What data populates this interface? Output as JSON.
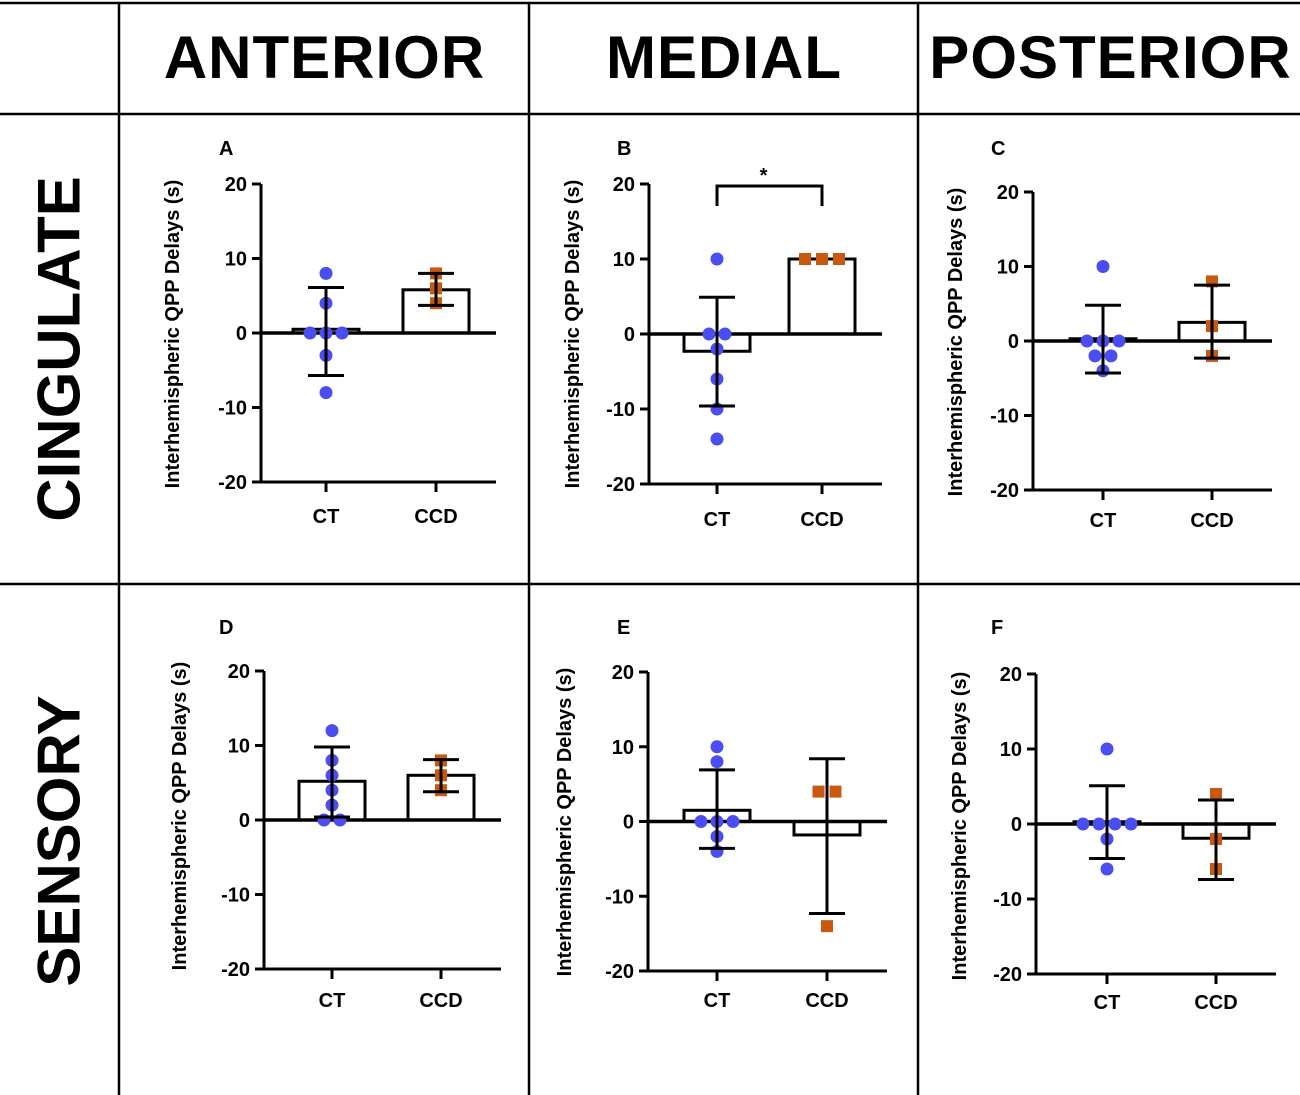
{
  "table": {
    "columns": [
      "ANTERIOR",
      "MEDIAL",
      "POSTERIOR"
    ],
    "rows": [
      "CINGULATE",
      "SENSORY"
    ]
  },
  "colors": {
    "ct": "#4a4df0",
    "ccd": "#c8590f",
    "axis": "#000000",
    "bar_fill": "#ffffff"
  },
  "chart_data": [
    {
      "type": "bar",
      "panel": "A",
      "title": "",
      "xlabel": "",
      "ylabel": "Interhemispheric QPP Delays (s)",
      "ylim": [
        -20,
        20
      ],
      "yticks": [
        20,
        10,
        0,
        -10,
        -20
      ],
      "categories": [
        "CT",
        "CCD"
      ],
      "bar_means": [
        0.5,
        5.8
      ],
      "error_bars": [
        [
          -5.7,
          6.1
        ],
        [
          3.7,
          8.0
        ]
      ],
      "points": {
        "CT": [
          8,
          4,
          0,
          0,
          0,
          -3,
          -8
        ],
        "CCD": [
          8,
          6,
          4
        ]
      },
      "annotations": []
    },
    {
      "type": "bar",
      "panel": "B",
      "title": "",
      "xlabel": "",
      "ylabel": "Interhemispheric QPP Delays (s)",
      "ylim": [
        -20,
        20
      ],
      "yticks": [
        20,
        10,
        0,
        -10,
        -20
      ],
      "categories": [
        "CT",
        "CCD"
      ],
      "bar_means": [
        -2.3,
        10.0
      ],
      "error_bars": [
        [
          -9.6,
          4.9
        ],
        [
          10.0,
          10.0
        ]
      ],
      "points": {
        "CT": [
          10,
          0,
          0,
          -2,
          -6,
          -10,
          -14
        ],
        "CCD": [
          10,
          10,
          10
        ]
      },
      "annotations": [
        "*"
      ]
    },
    {
      "type": "bar",
      "panel": "C",
      "title": "",
      "xlabel": "",
      "ylabel": "Interhemispheric QPP Delays (s)",
      "ylim": [
        -20,
        20
      ],
      "yticks": [
        20,
        10,
        0,
        -10,
        -20
      ],
      "categories": [
        "CT",
        "CCD"
      ],
      "bar_means": [
        0.3,
        2.5
      ],
      "error_bars": [
        [
          -4.3,
          4.8
        ],
        [
          -2.3,
          7.5
        ]
      ],
      "points": {
        "CT": [
          10,
          0,
          0,
          0,
          -2,
          -2,
          -4
        ],
        "CCD": [
          8,
          2,
          -2
        ]
      },
      "annotations": []
    },
    {
      "type": "bar",
      "panel": "D",
      "title": "",
      "xlabel": "",
      "ylabel": "Interhemispheric QPP Delays (s)",
      "ylim": [
        -20,
        20
      ],
      "yticks": [
        20,
        10,
        0,
        -10,
        -20
      ],
      "categories": [
        "CT",
        "CCD"
      ],
      "bar_means": [
        5.2,
        6.0
      ],
      "error_bars": [
        [
          0.4,
          9.8
        ],
        [
          3.8,
          8.1
        ]
      ],
      "points": {
        "CT": [
          12,
          8,
          6,
          4,
          2,
          0,
          0
        ],
        "CCD": [
          8,
          6,
          4
        ]
      },
      "annotations": []
    },
    {
      "type": "bar",
      "panel": "E",
      "title": "",
      "xlabel": "",
      "ylabel": "Interhemispheric QPP Delays (s)",
      "ylim": [
        -20,
        20
      ],
      "yticks": [
        20,
        10,
        0,
        -10,
        -20
      ],
      "categories": [
        "CT",
        "CCD"
      ],
      "bar_means": [
        1.5,
        -1.8
      ],
      "error_bars": [
        [
          -3.6,
          6.9
        ],
        [
          -12.3,
          8.4
        ]
      ],
      "points": {
        "CT": [
          10,
          8,
          0,
          0,
          0,
          -2,
          -4
        ],
        "CCD": [
          4,
          4,
          -14
        ]
      },
      "annotations": []
    },
    {
      "type": "bar",
      "panel": "F",
      "title": "",
      "xlabel": "",
      "ylabel": "Interhemispheric QPP Delays (s)",
      "ylim": [
        -20,
        20
      ],
      "yticks": [
        20,
        10,
        0,
        -10,
        -20
      ],
      "categories": [
        "CT",
        "CCD"
      ],
      "bar_means": [
        0.3,
        -1.9
      ],
      "error_bars": [
        [
          -4.6,
          5.1
        ],
        [
          -7.4,
          3.2
        ]
      ],
      "points": {
        "CT": [
          10,
          0,
          0,
          0,
          0,
          -2,
          -6
        ],
        "CCD": [
          4,
          -2,
          -6
        ]
      },
      "annotations": []
    }
  ]
}
